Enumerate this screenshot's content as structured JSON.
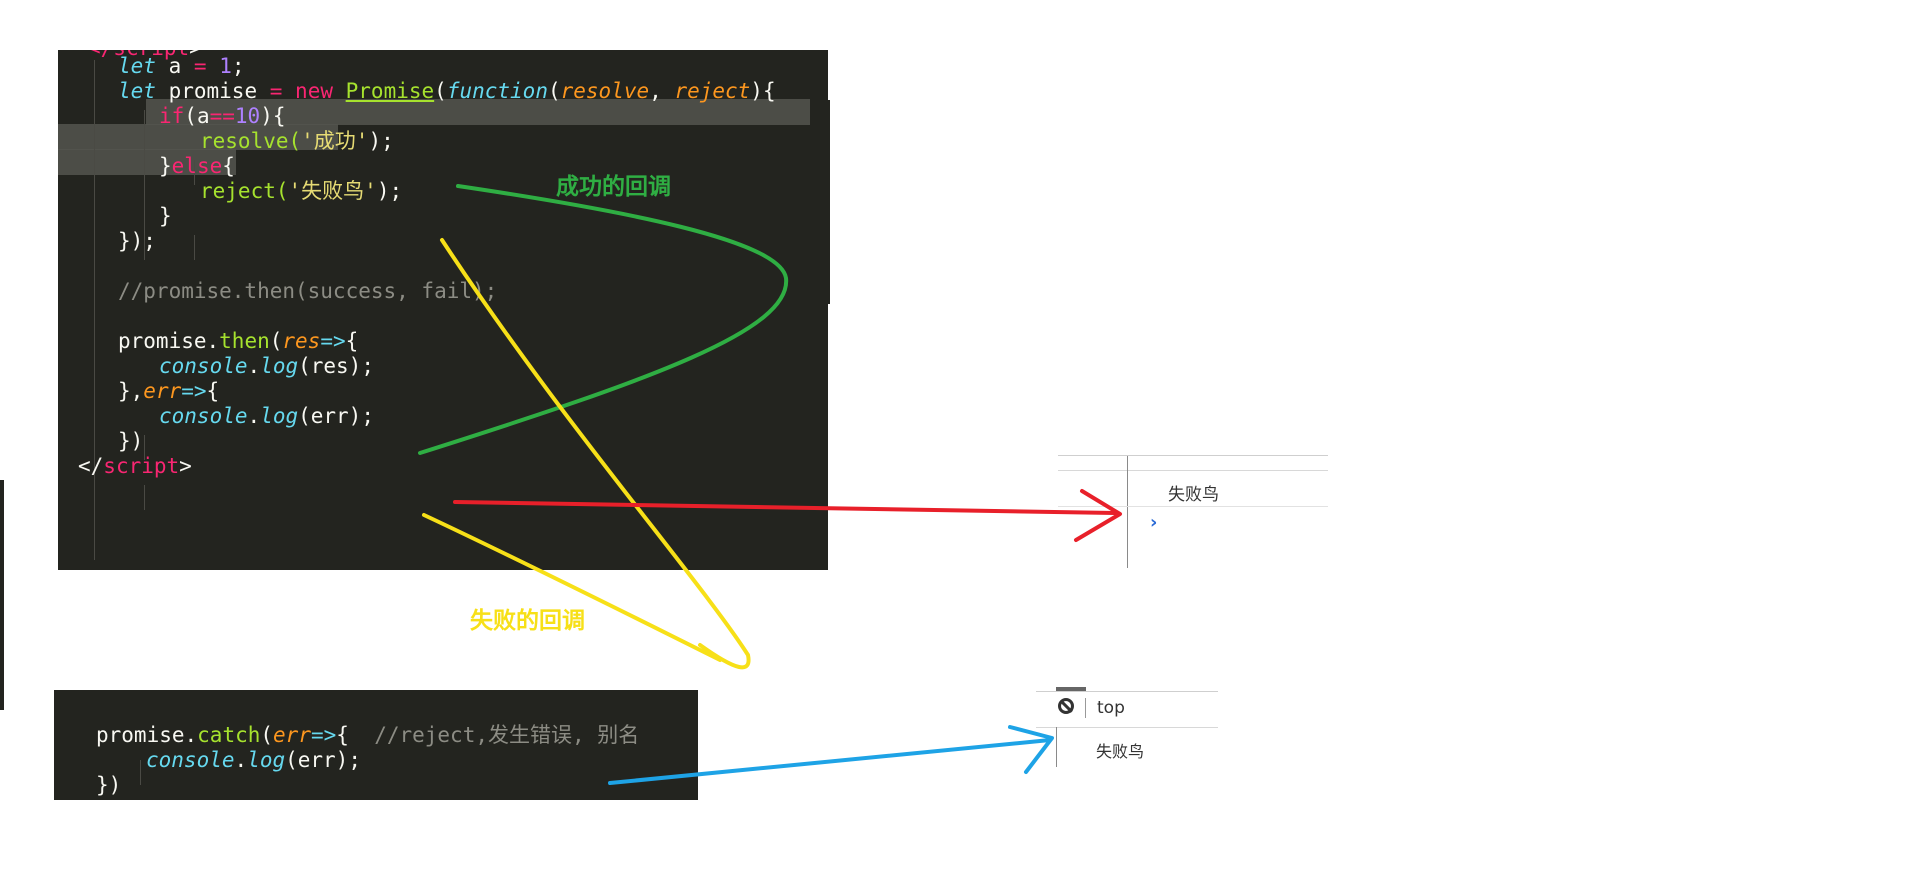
{
  "editor_main": {
    "lines": [
      {
        "parts": [
          {
            "t": "</",
            "c": "tag"
          },
          {
            "t": "script",
            "c": "tag"
          },
          {
            "t": ">",
            "c": ""
          }
        ]
      },
      {
        "parts": [
          {
            "t": "let",
            "c": "kw"
          },
          {
            "t": " a ",
            "c": ""
          },
          {
            "t": "=",
            "c": "kw-red"
          },
          {
            "t": " ",
            "c": ""
          },
          {
            "t": "1",
            "c": "num"
          },
          {
            "t": ";",
            "c": ""
          }
        ]
      },
      {
        "parts": [
          {
            "t": "let",
            "c": "kw"
          },
          {
            "t": " promise ",
            "c": ""
          },
          {
            "t": "=",
            "c": "kw-red"
          },
          {
            "t": " ",
            "c": ""
          },
          {
            "t": "new",
            "c": "kw-red"
          },
          {
            "t": " ",
            "c": ""
          },
          {
            "t": "Promise",
            "c": "cls"
          },
          {
            "t": "(",
            "c": ""
          },
          {
            "t": "function",
            "c": "kw"
          },
          {
            "t": "(",
            "c": ""
          },
          {
            "t": "resolve",
            "c": "param"
          },
          {
            "t": ", ",
            "c": ""
          },
          {
            "t": "reject",
            "c": "param"
          },
          {
            "t": "){",
            "c": ""
          }
        ]
      },
      {
        "parts": [
          {
            "t": "if",
            "c": "kw-red"
          },
          {
            "t": "(a",
            "c": ""
          },
          {
            "t": "==",
            "c": "kw-red"
          },
          {
            "t": "10",
            "c": "num"
          },
          {
            "t": "){",
            "c": ""
          }
        ]
      },
      {
        "parts": [
          {
            "t": "resolve(",
            "c": "fn"
          },
          {
            "t": "'成功'",
            "c": "str"
          },
          {
            "t": ");",
            "c": ""
          }
        ]
      },
      {
        "parts": [
          {
            "t": "}",
            "c": ""
          },
          {
            "t": "else",
            "c": "kw-red"
          },
          {
            "t": "{",
            "c": ""
          }
        ]
      },
      {
        "parts": [
          {
            "t": "reject(",
            "c": "fn"
          },
          {
            "t": "'失败鸟'",
            "c": "str"
          },
          {
            "t": ");",
            "c": ""
          }
        ]
      },
      {
        "parts": [
          {
            "t": "}",
            "c": ""
          }
        ]
      },
      {
        "parts": [
          {
            "t": "});",
            "c": ""
          }
        ]
      },
      {
        "parts": []
      },
      {
        "parts": [
          {
            "t": "//promise.then(success, fail);",
            "c": "cmt"
          }
        ]
      },
      {
        "parts": []
      },
      {
        "parts": [
          {
            "t": "promise.",
            "c": ""
          },
          {
            "t": "then",
            "c": "fn"
          },
          {
            "t": "(",
            "c": ""
          },
          {
            "t": "res",
            "c": "param"
          },
          {
            "t": "=>",
            "c": "kw"
          },
          {
            "t": "{",
            "c": ""
          }
        ]
      },
      {
        "parts": [
          {
            "t": "console",
            "c": "kw"
          },
          {
            "t": ".",
            "c": ""
          },
          {
            "t": "log",
            "c": "kw"
          },
          {
            "t": "(res);",
            "c": ""
          }
        ]
      },
      {
        "parts": [
          {
            "t": "},",
            "c": ""
          },
          {
            "t": "err",
            "c": "param"
          },
          {
            "t": "=>",
            "c": "kw"
          },
          {
            "t": "{",
            "c": ""
          }
        ]
      },
      {
        "parts": [
          {
            "t": "console",
            "c": "kw"
          },
          {
            "t": ".",
            "c": ""
          },
          {
            "t": "log",
            "c": "kw"
          },
          {
            "t": "(err);",
            "c": ""
          }
        ]
      },
      {
        "parts": [
          {
            "t": "})",
            "c": ""
          }
        ]
      },
      {
        "parts": [
          {
            "t": "</",
            "c": ""
          },
          {
            "t": "script",
            "c": "tag"
          },
          {
            "t": ">",
            "c": ""
          }
        ]
      }
    ]
  },
  "editor_catch": {
    "lines": [
      {
        "parts": [
          {
            "t": "promise.",
            "c": ""
          },
          {
            "t": "catch",
            "c": "fn"
          },
          {
            "t": "(",
            "c": ""
          },
          {
            "t": "err",
            "c": "param"
          },
          {
            "t": "=>",
            "c": "kw"
          },
          {
            "t": "{  ",
            "c": ""
          },
          {
            "t": "//reject,发生错误, 别名",
            "c": "cmt"
          }
        ]
      },
      {
        "parts": [
          {
            "t": "console",
            "c": "kw"
          },
          {
            "t": ".",
            "c": ""
          },
          {
            "t": "log",
            "c": "kw"
          },
          {
            "t": "(err);",
            "c": ""
          }
        ]
      },
      {
        "parts": [
          {
            "t": "})",
            "c": ""
          }
        ]
      }
    ]
  },
  "console_1": {
    "output": "失败鸟",
    "prompt_icon": "chevron-right-icon"
  },
  "console_2": {
    "context": "top",
    "output": "失败鸟",
    "clear_icon": "no-entry-icon"
  },
  "annotations": {
    "success_label": "成功的回调",
    "fail_label": "失败的回调"
  },
  "colors": {
    "editor_bg": "#23241f",
    "success": "#2fae43",
    "fail": "#f7e018",
    "arrow_red": "#e8202a",
    "arrow_blue": "#1ea3e6"
  }
}
